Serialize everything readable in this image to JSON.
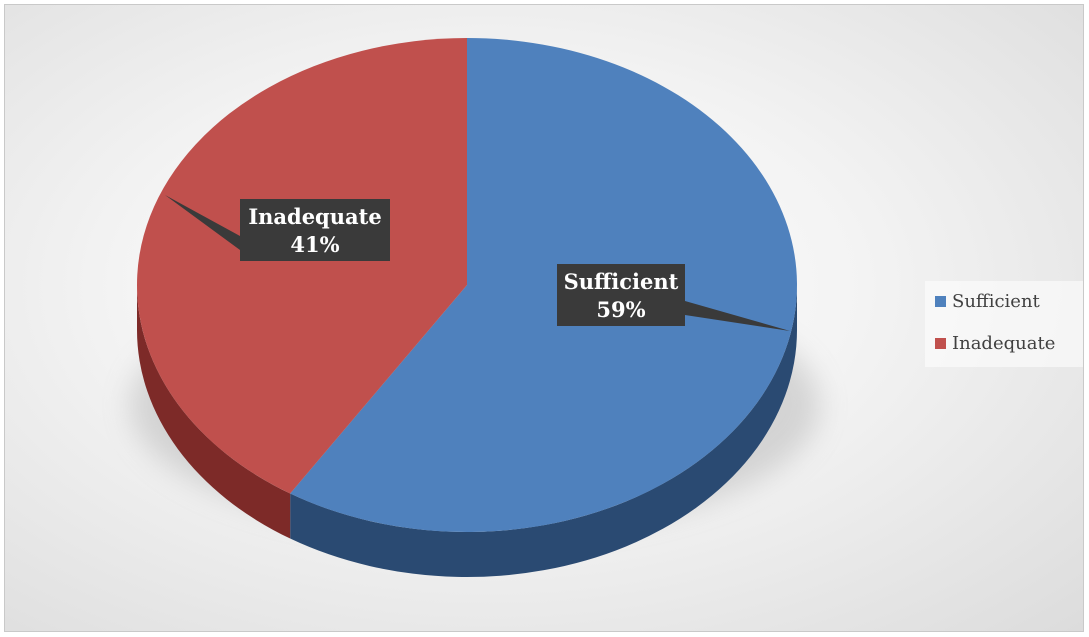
{
  "chart_data": {
    "type": "pie",
    "style": "3d",
    "title": "",
    "slices": [
      {
        "label": "Sufficient",
        "value": 59,
        "percent_label": "59%",
        "color": "#4f81bd",
        "side_color": "#2a4a72"
      },
      {
        "label": "Inadequate",
        "value": 41,
        "percent_label": "41%",
        "color": "#c0504d",
        "side_color": "#7d2a28"
      }
    ],
    "legend": {
      "position": "right",
      "entries": [
        "Sufficient",
        "Inadequate"
      ]
    },
    "data_labels": {
      "background": "#3a3a3a",
      "text_color": "#ffffff"
    }
  }
}
